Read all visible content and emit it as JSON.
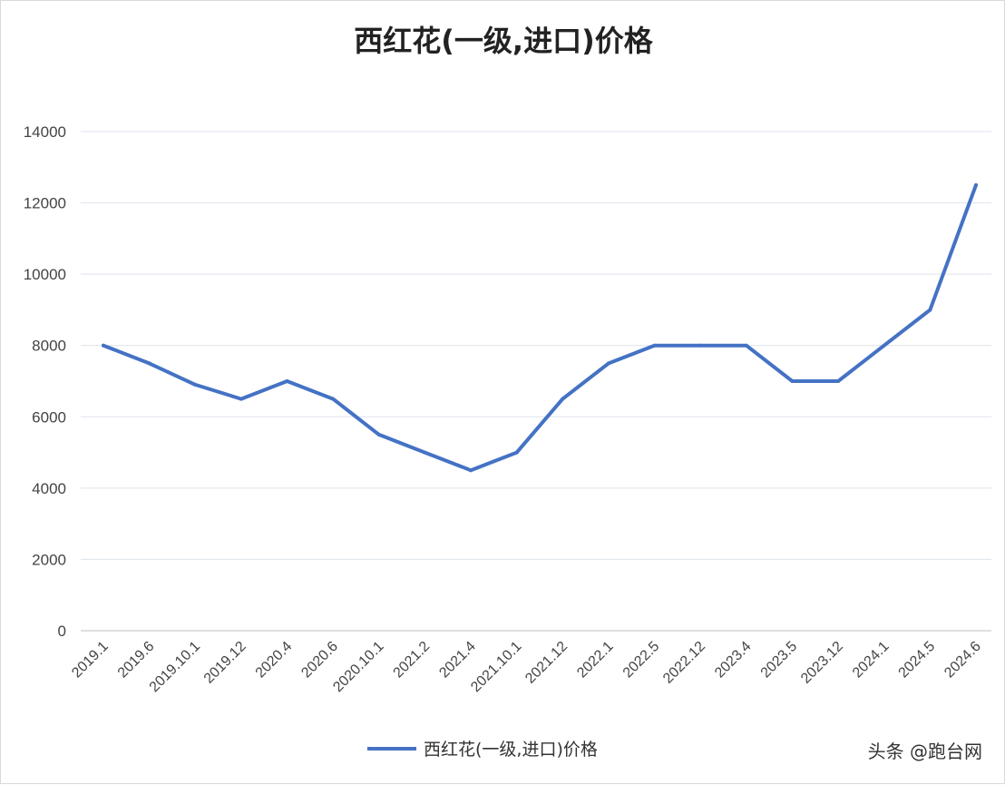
{
  "chart_data": {
    "type": "line",
    "title": "西红花(一级,进口)价格",
    "categories": [
      "2019.1",
      "2019.6",
      "2019.10.1",
      "2019.12",
      "2020.4",
      "2020.6",
      "2020.10.1",
      "2021.2",
      "2021.4",
      "2021.10.1",
      "2021.12",
      "2022.1",
      "2022.5",
      "2022.12",
      "2023.4",
      "2023.5",
      "2023.12",
      "2024.1",
      "2024.5",
      "2024.6"
    ],
    "series": [
      {
        "name": "西红花(一级,进口)价格",
        "color": "#4472c4",
        "values": [
          8000,
          7500,
          6900,
          6500,
          7000,
          6500,
          5500,
          5000,
          4500,
          5000,
          6500,
          7500,
          8000,
          8000,
          8000,
          7000,
          7000,
          8000,
          9000,
          12500
        ]
      }
    ],
    "y_ticks": [
      "0",
      "2000",
      "4000",
      "6000",
      "8000",
      "10000",
      "12000",
      "14000"
    ],
    "ylim": [
      0,
      14000
    ],
    "xlabel": "",
    "ylabel": "",
    "grid": true,
    "legend": "bottom"
  },
  "watermark": "头条 @跑台网",
  "colors": {
    "grid": "#dde3ec",
    "axis": "#bfbfbf"
  }
}
